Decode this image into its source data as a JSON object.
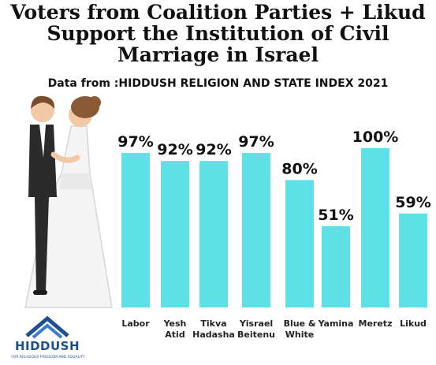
{
  "title_lines": [
    "Voters from Coalition Parties + Likud",
    "Support the Institution of Civil",
    "Marriage in Israel"
  ],
  "subtitle": "Data from :HIDDUSH RELIGION AND STATE INDEX 2021",
  "logo": {
    "name": "HIDDUSH",
    "tagline": "FOR RELIGIOUS FREEDOM AND EQUALITY"
  },
  "colors": {
    "bar": "#5de0e6",
    "text": "#111111",
    "logo": "#1d4f91"
  },
  "chart_data": {
    "type": "bar",
    "categories": [
      [
        "Labor"
      ],
      [
        "Yesh",
        "Atid"
      ],
      [
        "Tikva",
        "Hadasha"
      ],
      [
        "Yisrael",
        "Beitenu"
      ],
      [
        "Blue &",
        "White"
      ],
      [
        "Yamina"
      ],
      [
        "Meretz"
      ],
      [
        "Likud"
      ]
    ],
    "values": [
      97,
      92,
      92,
      97,
      80,
      51,
      100,
      59
    ],
    "value_labels": [
      "97%",
      "92%",
      "92%",
      "97%",
      "80%",
      "51%",
      "100%",
      "59%"
    ],
    "ylim": [
      0,
      100
    ],
    "grid": false,
    "legend": "none"
  }
}
